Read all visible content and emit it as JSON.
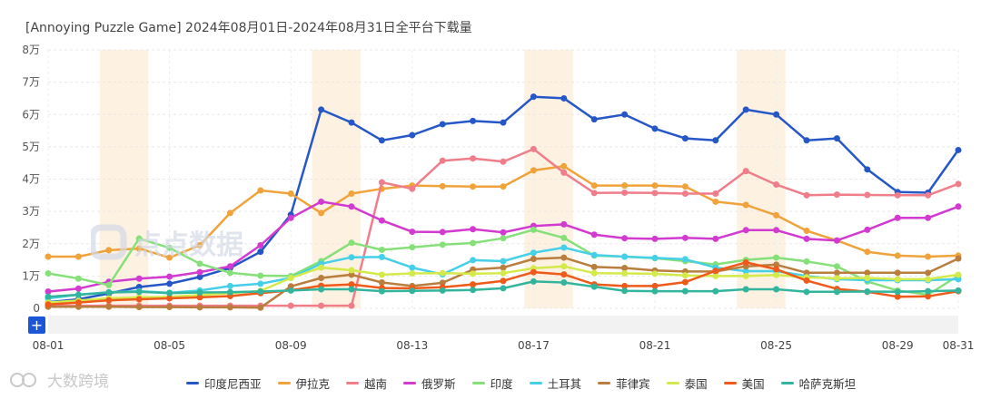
{
  "title": "[Annoying Puzzle Game]  2024年08月01日-2024年08月31日全平台下载量",
  "brand": {
    "logo_icon": "db-logo-icon",
    "text": "大数跨境"
  },
  "watermark": {
    "text": "点点数据",
    "icon": "diandian-logo-icon"
  },
  "controls": {
    "add_label": "+"
  },
  "chart_data": {
    "type": "line",
    "x": [
      "08-01",
      "08-02",
      "08-03",
      "08-04",
      "08-05",
      "08-06",
      "08-07",
      "08-08",
      "08-09",
      "08-10",
      "08-11",
      "08-12",
      "08-13",
      "08-14",
      "08-15",
      "08-16",
      "08-17",
      "08-18",
      "08-19",
      "08-20",
      "08-21",
      "08-22",
      "08-23",
      "08-24",
      "08-25",
      "08-26",
      "08-27",
      "08-28",
      "08-29",
      "08-30",
      "08-31"
    ],
    "xtick_labels": [
      "08-01",
      "08-05",
      "08-09",
      "08-13",
      "08-17",
      "08-21",
      "08-25",
      "08-29",
      "08-31"
    ],
    "xtick_indices": [
      0,
      4,
      8,
      12,
      16,
      20,
      24,
      28,
      30
    ],
    "ytick_labels": [
      "0",
      "1万",
      "2万",
      "3万",
      "4万",
      "5万",
      "6万",
      "7万",
      "8万"
    ],
    "ylim": [
      0,
      80000
    ],
    "grid": true,
    "weekend_highlight_ranges": [
      [
        2,
        3
      ],
      [
        9,
        10
      ],
      [
        16,
        17
      ],
      [
        23,
        24
      ]
    ],
    "highlight_color": "#fdf1e2",
    "legend_position": "bottom",
    "series": [
      {
        "name": "印度尼西亚",
        "color": "#2557c7",
        "values": [
          1900,
          2800,
          4600,
          6600,
          7600,
          9700,
          12500,
          17500,
          29000,
          61500,
          57500,
          52000,
          53600,
          57000,
          58000,
          57500,
          65500,
          65000,
          58500,
          60000,
          55600,
          52600,
          52000,
          61500,
          60000,
          52000,
          52600,
          43000,
          36000,
          35800,
          49000
        ]
      },
      {
        "name": "伊拉克",
        "color": "#efa33a",
        "values": [
          16000,
          16000,
          18000,
          18500,
          15700,
          19500,
          29500,
          36500,
          35500,
          29500,
          35500,
          37000,
          38000,
          37800,
          37700,
          37700,
          42700,
          44000,
          38000,
          38000,
          38000,
          37700,
          33000,
          32000,
          28800,
          24000,
          21000,
          17500,
          16300,
          16000,
          16300
        ]
      },
      {
        "name": "越南",
        "color": "#f07d8a",
        "values": [
          800,
          800,
          800,
          800,
          800,
          800,
          800,
          800,
          800,
          800,
          800,
          39000,
          37000,
          45700,
          46400,
          45400,
          49300,
          42000,
          35700,
          35800,
          35700,
          35500,
          35500,
          42500,
          38300,
          35000,
          35200,
          35100,
          35000,
          35000,
          38500
        ]
      },
      {
        "name": "俄罗斯",
        "color": "#d23ad0",
        "values": [
          5200,
          6100,
          8200,
          9200,
          9800,
          11200,
          13000,
          19500,
          28000,
          33000,
          31500,
          27200,
          23700,
          23600,
          24500,
          23500,
          25500,
          26000,
          22800,
          21700,
          21500,
          21800,
          21500,
          24200,
          24200,
          21500,
          21000,
          24300,
          28000,
          28000,
          31500
        ]
      },
      {
        "name": "印度",
        "color": "#86e07a",
        "values": [
          10800,
          9200,
          7200,
          21600,
          18700,
          13800,
          11000,
          10100,
          10000,
          14600,
          20300,
          18100,
          18900,
          19700,
          20200,
          21700,
          24300,
          21800,
          16300,
          16000,
          15500,
          14600,
          13600,
          15000,
          15700,
          14500,
          13000,
          8300,
          5500,
          4200,
          10100
        ]
      },
      {
        "name": "土耳其",
        "color": "#45d0e8",
        "values": [
          3100,
          4200,
          5000,
          5300,
          4800,
          5500,
          6900,
          7600,
          9400,
          13800,
          15800,
          15900,
          12600,
          10500,
          14900,
          14600,
          17200,
          18800,
          16500,
          16000,
          15600,
          15200,
          12600,
          11500,
          11500,
          10000,
          9000,
          8700,
          8700,
          8700,
          9000
        ]
      },
      {
        "name": "菲律宾",
        "color": "#b97e3d",
        "values": [
          500,
          500,
          500,
          400,
          400,
          300,
          300,
          200,
          6800,
          9400,
          10400,
          8000,
          6900,
          7900,
          12000,
          12600,
          15300,
          15700,
          12800,
          12500,
          11700,
          11400,
          11400,
          13000,
          13500,
          11000,
          11000,
          11000,
          11000,
          11000,
          15400
        ]
      },
      {
        "name": "泰国",
        "color": "#d4ea4b",
        "values": [
          1800,
          2400,
          3100,
          3400,
          3600,
          4100,
          4700,
          5400,
          9400,
          12600,
          11800,
          10400,
          10800,
          10900,
          10700,
          10900,
          12400,
          13000,
          10900,
          10800,
          10700,
          10200,
          10000,
          10000,
          10300,
          9600,
          9300,
          9400,
          9000,
          9000,
          10400
        ]
      },
      {
        "name": "美国",
        "color": "#ee5a1a",
        "values": [
          1200,
          1800,
          2500,
          2800,
          3100,
          3400,
          3800,
          4700,
          5600,
          7000,
          7400,
          6300,
          6200,
          6500,
          7400,
          8500,
          11200,
          10500,
          7400,
          6900,
          6900,
          8100,
          11600,
          14200,
          12100,
          8600,
          6000,
          5100,
          3600,
          3700,
          5300
        ]
      },
      {
        "name": "哈萨克斯坦",
        "color": "#33b59d",
        "values": [
          3600,
          4200,
          4900,
          5100,
          4700,
          4900,
          5000,
          5200,
          5500,
          5900,
          5900,
          5300,
          5400,
          5500,
          5700,
          6200,
          8300,
          8000,
          6700,
          5400,
          5300,
          5300,
          5300,
          5900,
          5900,
          5100,
          5100,
          5200,
          5100,
          5300,
          5500
        ]
      }
    ]
  }
}
